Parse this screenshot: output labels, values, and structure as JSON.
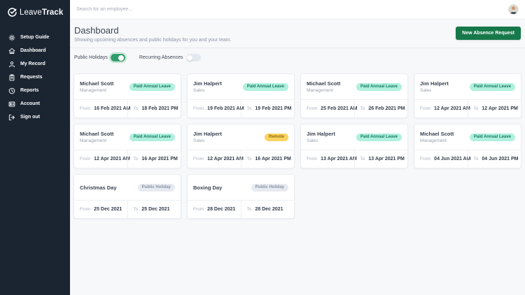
{
  "app": {
    "logo_leave": "Leave",
    "logo_track": "Track"
  },
  "sidebar": {
    "items": [
      {
        "label": "Setup Guide",
        "icon": "gear"
      },
      {
        "label": "Dashboard",
        "icon": "home"
      },
      {
        "label": "My Record",
        "icon": "person"
      },
      {
        "label": "Requests",
        "icon": "clipboard"
      },
      {
        "label": "Reports",
        "icon": "clock"
      },
      {
        "label": "Account",
        "icon": "id-card"
      },
      {
        "label": "Sign out",
        "icon": "logout"
      }
    ]
  },
  "topbar": {
    "search_placeholder": "Search for an employee..."
  },
  "header": {
    "title": "Dashboard",
    "subtitle": "Showing upcoming absences and public holidays for you and your team.",
    "new_absence_button": "New Absence Request"
  },
  "filters": {
    "public_holidays_label": "Public Holidays",
    "public_holidays_on": true,
    "recurring_absences_label": "Recurring Absences",
    "recurring_absences_on": false
  },
  "labels": {
    "from": "From",
    "to": "To"
  },
  "colors": {
    "sidebar_bg": "#1B2532",
    "accent_green": "#17784A",
    "toggle_on": "#2F9E6B",
    "badge_leave_bg": "#AFF0DD",
    "badge_leave_text": "#157A61",
    "badge_remote_bg": "#FBD45F",
    "badge_remote_text": "#8F6A10",
    "badge_holiday_bg": "#E7EBF1",
    "badge_holiday_text": "#8893A3"
  },
  "cards": [
    {
      "name": "Michael Scott",
      "subtitle": "Management",
      "badge": "Paid Annual Leave",
      "badge_type": "leave",
      "from": "16 Feb 2021 AM",
      "to": "18 Feb 2021 PM"
    },
    {
      "name": "Jim Halpert",
      "subtitle": "Sales",
      "badge": "Paid Annual Leave",
      "badge_type": "leave",
      "from": "19 Feb 2021 AM",
      "to": "19 Feb 2021 PM"
    },
    {
      "name": "Michael Scott",
      "subtitle": "Management",
      "badge": "Paid Annual Leave",
      "badge_type": "leave",
      "from": "25 Feb 2021 AM",
      "to": "26 Feb 2021 PM"
    },
    {
      "name": "Jim Halpert",
      "subtitle": "Sales",
      "badge": "Paid Annual Leave",
      "badge_type": "leave",
      "from": "12 Apr 2021 AM",
      "to": "12 Apr 2021 PM"
    },
    {
      "name": "Michael Scott",
      "subtitle": "Management",
      "badge": "Paid Annual Leave",
      "badge_type": "leave",
      "from": "12 Apr 2021 AM",
      "to": "16 Apr 2021 PM"
    },
    {
      "name": "Jim Halpert",
      "subtitle": "Sales",
      "badge": "Remote",
      "badge_type": "remote",
      "from": "12 Apr 2021 AM",
      "to": "16 Apr 2021 PM"
    },
    {
      "name": "Jim Halpert",
      "subtitle": "Sales",
      "badge": "Paid Annual Leave",
      "badge_type": "leave",
      "from": "13 Apr 2021 AM",
      "to": "13 Apr 2021 PM"
    },
    {
      "name": "Michael Scott",
      "subtitle": "Management",
      "badge": "Paid Annual Leave",
      "badge_type": "leave",
      "from": "04 Jun 2021 AM",
      "to": "04 Jun 2021 PM"
    },
    {
      "name": "Christmas Day",
      "subtitle": "",
      "badge": "Public Holiday",
      "badge_type": "holiday",
      "from": "25 Dec 2021",
      "to": "25 Dec 2021"
    },
    {
      "name": "Boxing Day",
      "subtitle": "",
      "badge": "Public Holiday",
      "badge_type": "holiday",
      "from": "28 Dec 2021",
      "to": "28 Dec 2021"
    }
  ]
}
